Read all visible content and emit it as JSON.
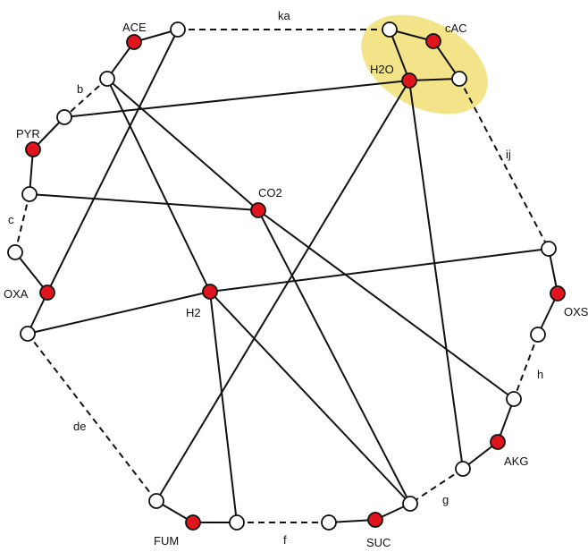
{
  "colors": {
    "metabolite_node": "#e0141c",
    "open_node": "#ffffff",
    "edge": "#111111",
    "highlight": "#f3e48a"
  },
  "labels": {
    "ace": "ACE",
    "cac": "cAC",
    "h2o": "H2O",
    "pyr": "PYR",
    "co2": "CO2",
    "oxa": "OXA",
    "h2": "H2",
    "oxs": "OXS",
    "akg": "AKG",
    "fum": "FUM",
    "suc": "SUC",
    "ka": "ka",
    "b": "b",
    "ij": "ij",
    "c": "c",
    "h": "h",
    "de": "de",
    "g": "g",
    "f": "f"
  }
}
